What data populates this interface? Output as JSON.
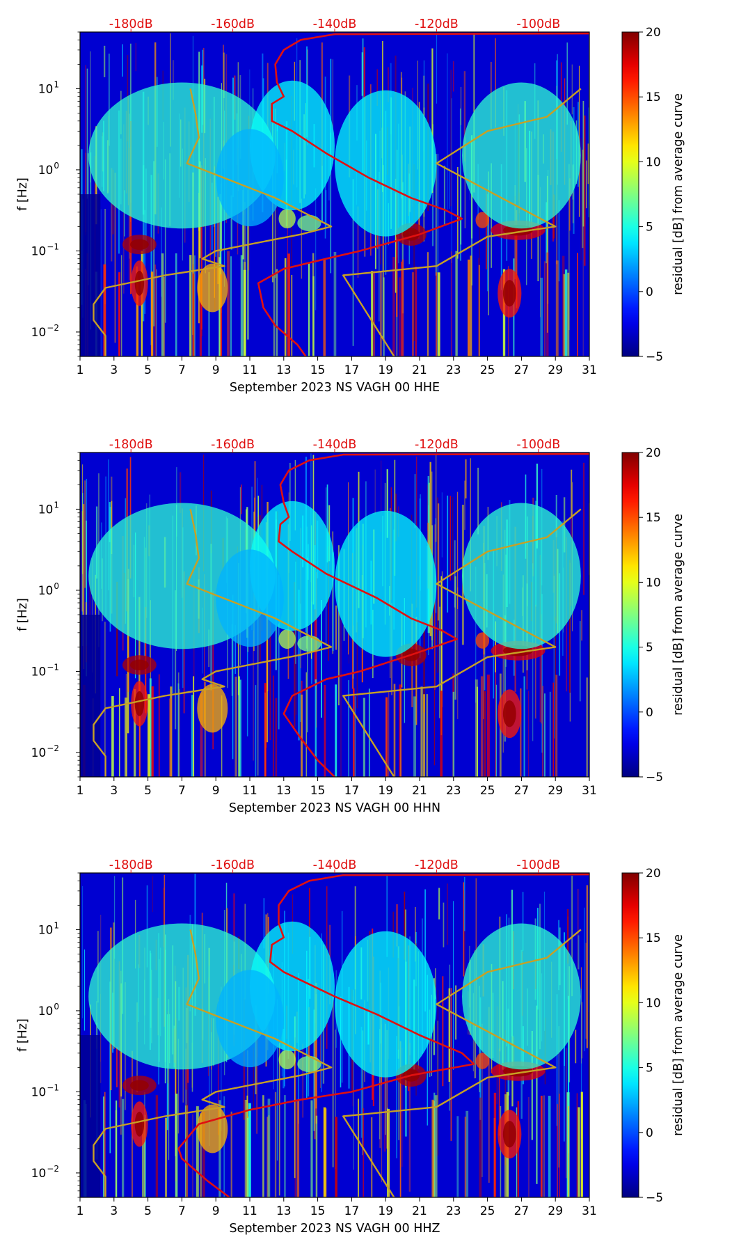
{
  "chart_data": [
    {
      "type": "heatmap",
      "title": "",
      "xlabel": "September 2023 NS VAGH 00 HHE",
      "ylabel": "f [Hz]",
      "xlim": [
        1,
        31
      ],
      "ylim": [
        0.005,
        50
      ],
      "yscale": "log",
      "xticks": [
        1,
        3,
        5,
        7,
        9,
        11,
        13,
        15,
        17,
        19,
        21,
        23,
        25,
        27,
        29,
        31
      ],
      "yticks": [
        {
          "value": 0.01,
          "base": "10",
          "exp": "−2"
        },
        {
          "value": 0.1,
          "base": "10",
          "exp": "−1"
        },
        {
          "value": 1,
          "base": "10",
          "exp": "0"
        },
        {
          "value": 10,
          "base": "10",
          "exp": "1"
        }
      ],
      "top_axis_labels": [
        {
          "x": 4,
          "label": "-180dB"
        },
        {
          "x": 10,
          "label": "-160dB"
        },
        {
          "x": 16,
          "label": "-140dB"
        },
        {
          "x": 22,
          "label": "-120dB"
        },
        {
          "x": 28,
          "label": "-100dB"
        }
      ],
      "colorbar": {
        "label": "residual [dB] from average curve",
        "min": -5,
        "max": 20,
        "ticks": [
          -5,
          0,
          5,
          10,
          15,
          20
        ],
        "tick_labels": [
          "−5",
          "0",
          "5",
          "10",
          "15",
          "20"
        ]
      },
      "series": [
        {
          "name": "median PSD (top axis dB)",
          "color": "#e01010",
          "points": [
            [
              14.3,
              0.005
            ],
            [
              13.8,
              0.007
            ],
            [
              12.5,
              0.012
            ],
            [
              11.8,
              0.02
            ],
            [
              11.5,
              0.04
            ],
            [
              13.0,
              0.06
            ],
            [
              15.5,
              0.08
            ],
            [
              17.5,
              0.1
            ],
            [
              21.0,
              0.16
            ],
            [
              23.5,
              0.25
            ],
            [
              22.5,
              0.32
            ],
            [
              20.5,
              0.45
            ],
            [
              18.0,
              0.8
            ],
            [
              15.5,
              1.6
            ],
            [
              13.5,
              3.0
            ],
            [
              12.3,
              4.0
            ],
            [
              12.3,
              6.5
            ],
            [
              13.0,
              8.0
            ],
            [
              12.6,
              12.0
            ],
            [
              12.5,
              20.0
            ],
            [
              13.0,
              30.0
            ],
            [
              14.0,
              40.0
            ],
            [
              16.0,
              47.0
            ],
            [
              31.0,
              48.0
            ]
          ]
        },
        {
          "name": "noise model (top axis dB)",
          "color": "#c8a024",
          "points": [
            [
              2.5,
              0.005
            ],
            [
              2.5,
              0.009
            ],
            [
              1.8,
              0.014
            ],
            [
              1.8,
              0.022
            ],
            [
              2.5,
              0.035
            ],
            [
              6.0,
              0.05
            ],
            [
              9.5,
              0.065
            ],
            [
              8.2,
              0.08
            ],
            [
              9.0,
              0.1
            ],
            [
              14.0,
              0.16
            ],
            [
              15.8,
              0.2
            ],
            [
              12.5,
              0.45
            ],
            [
              7.3,
              1.2
            ],
            [
              8.0,
              2.5
            ],
            [
              7.8,
              5.0
            ],
            [
              7.5,
              10.0
            ]
          ]
        },
        {
          "name": "noise model high (top axis dB)",
          "color": "#c8a024",
          "points": [
            [
              19.5,
              0.005
            ],
            [
              16.5,
              0.05
            ],
            [
              22.0,
              0.065
            ],
            [
              25.0,
              0.15
            ],
            [
              29.0,
              0.2
            ],
            [
              22.0,
              1.2
            ],
            [
              25.0,
              3.0
            ],
            [
              28.5,
              4.5
            ],
            [
              30.5,
              10.0
            ]
          ]
        }
      ]
    },
    {
      "type": "heatmap",
      "title": "",
      "xlabel": "September 2023 NS VAGH 00 HHN",
      "ylabel": "f [Hz]",
      "xlim": [
        1,
        31
      ],
      "ylim": [
        0.005,
        50
      ],
      "yscale": "log",
      "xticks": [
        1,
        3,
        5,
        7,
        9,
        11,
        13,
        15,
        17,
        19,
        21,
        23,
        25,
        27,
        29,
        31
      ],
      "yticks": [
        {
          "value": 0.01,
          "base": "10",
          "exp": "−2"
        },
        {
          "value": 0.1,
          "base": "10",
          "exp": "−1"
        },
        {
          "value": 1,
          "base": "10",
          "exp": "0"
        },
        {
          "value": 10,
          "base": "10",
          "exp": "1"
        }
      ],
      "top_axis_labels": [
        {
          "x": 4,
          "label": "-180dB"
        },
        {
          "x": 10,
          "label": "-160dB"
        },
        {
          "x": 16,
          "label": "-140dB"
        },
        {
          "x": 22,
          "label": "-120dB"
        },
        {
          "x": 28,
          "label": "-100dB"
        }
      ],
      "colorbar": {
        "label": "residual [dB] from average curve",
        "min": -5,
        "max": 20,
        "ticks": [
          -5,
          0,
          5,
          10,
          15,
          20
        ],
        "tick_labels": [
          "−5",
          "0",
          "5",
          "10",
          "15",
          "20"
        ]
      },
      "series": [
        {
          "name": "median PSD (top axis dB)",
          "color": "#e01010",
          "points": [
            [
              16.0,
              0.005
            ],
            [
              15.0,
              0.008
            ],
            [
              14.0,
              0.015
            ],
            [
              13.0,
              0.03
            ],
            [
              13.5,
              0.05
            ],
            [
              15.5,
              0.08
            ],
            [
              17.5,
              0.1
            ],
            [
              20.5,
              0.16
            ],
            [
              23.2,
              0.25
            ],
            [
              22.3,
              0.32
            ],
            [
              20.5,
              0.45
            ],
            [
              18.5,
              0.8
            ],
            [
              15.5,
              1.6
            ],
            [
              13.5,
              3.0
            ],
            [
              12.7,
              4.0
            ],
            [
              12.8,
              6.5
            ],
            [
              13.3,
              8.0
            ],
            [
              13.0,
              12.0
            ],
            [
              12.8,
              20.0
            ],
            [
              13.3,
              30.0
            ],
            [
              14.5,
              40.0
            ],
            [
              16.5,
              47.0
            ],
            [
              31.0,
              48.0
            ]
          ]
        },
        {
          "name": "noise model (top axis dB)",
          "color": "#c8a024",
          "points": [
            [
              2.5,
              0.005
            ],
            [
              2.5,
              0.009
            ],
            [
              1.8,
              0.014
            ],
            [
              1.8,
              0.022
            ],
            [
              2.5,
              0.035
            ],
            [
              6.0,
              0.05
            ],
            [
              9.5,
              0.065
            ],
            [
              8.2,
              0.08
            ],
            [
              9.0,
              0.1
            ],
            [
              14.0,
              0.16
            ],
            [
              15.8,
              0.2
            ],
            [
              12.5,
              0.45
            ],
            [
              7.3,
              1.2
            ],
            [
              8.0,
              2.5
            ],
            [
              7.8,
              5.0
            ],
            [
              7.5,
              10.0
            ]
          ]
        },
        {
          "name": "noise model high (top axis dB)",
          "color": "#c8a024",
          "points": [
            [
              19.5,
              0.005
            ],
            [
              16.5,
              0.05
            ],
            [
              22.0,
              0.065
            ],
            [
              25.0,
              0.15
            ],
            [
              29.0,
              0.2
            ],
            [
              22.0,
              1.2
            ],
            [
              25.0,
              3.0
            ],
            [
              28.5,
              4.5
            ],
            [
              30.5,
              10.0
            ]
          ]
        }
      ]
    },
    {
      "type": "heatmap",
      "title": "",
      "xlabel": "September 2023 NS VAGH 00 HHZ",
      "ylabel": "f [Hz]",
      "xlim": [
        1,
        31
      ],
      "ylim": [
        0.005,
        50
      ],
      "yscale": "log",
      "xticks": [
        1,
        3,
        5,
        7,
        9,
        11,
        13,
        15,
        17,
        19,
        21,
        23,
        25,
        27,
        29,
        31
      ],
      "yticks": [
        {
          "value": 0.01,
          "base": "10",
          "exp": "−2"
        },
        {
          "value": 0.1,
          "base": "10",
          "exp": "−1"
        },
        {
          "value": 1,
          "base": "10",
          "exp": "0"
        },
        {
          "value": 10,
          "base": "10",
          "exp": "1"
        }
      ],
      "top_axis_labels": [
        {
          "x": 4,
          "label": "-180dB"
        },
        {
          "x": 10,
          "label": "-160dB"
        },
        {
          "x": 16,
          "label": "-140dB"
        },
        {
          "x": 22,
          "label": "-120dB"
        },
        {
          "x": 28,
          "label": "-100dB"
        }
      ],
      "colorbar": {
        "label": "residual [dB] from average curve",
        "min": -5,
        "max": 20,
        "ticks": [
          -5,
          0,
          5,
          10,
          15,
          20
        ],
        "tick_labels": [
          "−5",
          "0",
          "5",
          "10",
          "15",
          "20"
        ]
      },
      "series": [
        {
          "name": "median PSD (top axis dB)",
          "color": "#e01010",
          "points": [
            [
              9.8,
              0.005
            ],
            [
              8.5,
              0.008
            ],
            [
              7.0,
              0.015
            ],
            [
              6.8,
              0.02
            ],
            [
              8.0,
              0.04
            ],
            [
              11.0,
              0.06
            ],
            [
              14.0,
              0.08
            ],
            [
              17.0,
              0.1
            ],
            [
              20.5,
              0.16
            ],
            [
              24.2,
              0.22
            ],
            [
              23.5,
              0.3
            ],
            [
              21.0,
              0.5
            ],
            [
              18.5,
              0.9
            ],
            [
              16.0,
              1.5
            ],
            [
              13.0,
              3.0
            ],
            [
              12.2,
              4.0
            ],
            [
              12.3,
              6.5
            ],
            [
              13.0,
              8.0
            ],
            [
              12.7,
              12.0
            ],
            [
              12.7,
              20.0
            ],
            [
              13.3,
              30.0
            ],
            [
              14.5,
              40.0
            ],
            [
              16.5,
              47.0
            ],
            [
              31.0,
              48.0
            ]
          ]
        },
        {
          "name": "noise model (top axis dB)",
          "color": "#c8a024",
          "points": [
            [
              2.5,
              0.005
            ],
            [
              2.5,
              0.009
            ],
            [
              1.8,
              0.014
            ],
            [
              1.8,
              0.022
            ],
            [
              2.5,
              0.035
            ],
            [
              6.0,
              0.05
            ],
            [
              9.5,
              0.065
            ],
            [
              8.2,
              0.08
            ],
            [
              9.0,
              0.1
            ],
            [
              14.0,
              0.16
            ],
            [
              15.8,
              0.2
            ],
            [
              12.5,
              0.45
            ],
            [
              7.3,
              1.2
            ],
            [
              8.0,
              2.5
            ],
            [
              7.8,
              5.0
            ],
            [
              7.5,
              10.0
            ]
          ]
        },
        {
          "name": "noise model high (top axis dB)",
          "color": "#c8a024",
          "points": [
            [
              19.5,
              0.005
            ],
            [
              16.5,
              0.05
            ],
            [
              22.0,
              0.065
            ],
            [
              25.0,
              0.15
            ],
            [
              29.0,
              0.2
            ],
            [
              22.0,
              1.2
            ],
            [
              25.0,
              3.0
            ],
            [
              28.5,
              4.5
            ],
            [
              30.5,
              10.0
            ]
          ]
        }
      ]
    }
  ]
}
